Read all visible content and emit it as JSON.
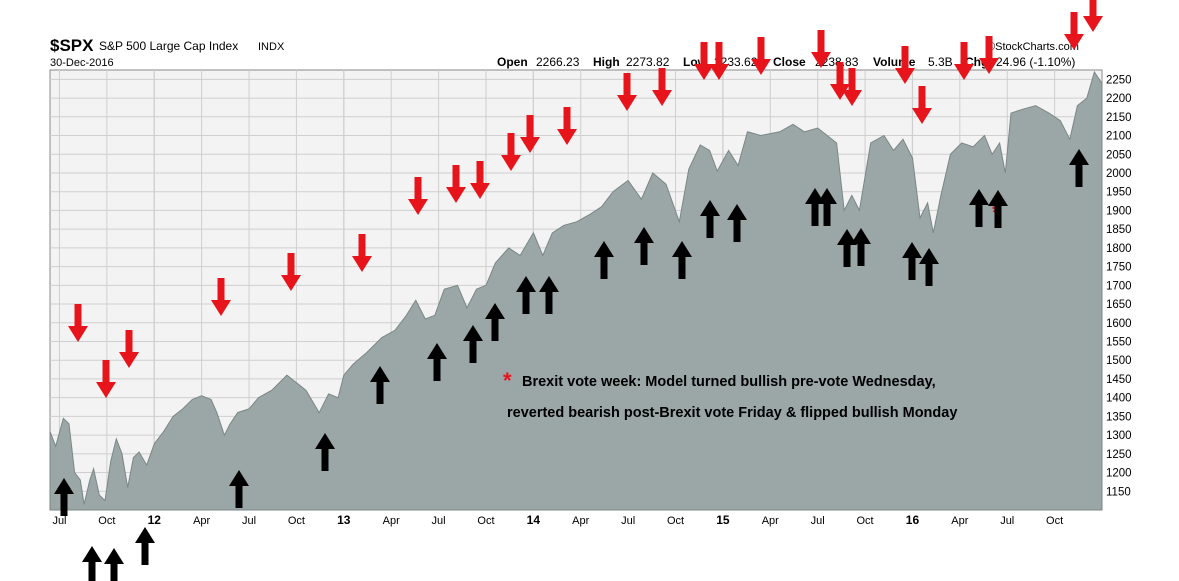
{
  "header": {
    "symbol": "$SPX",
    "name": "S&P 500 Large Cap Index",
    "exchange": "INDX",
    "date": "30-Dec-2016",
    "watermark": "©StockCharts.com",
    "open_label": "Open",
    "open_value": "2266.23",
    "high_label": "High",
    "high_value": "2273.82",
    "low_label": "Low",
    "low_value": "2233.62",
    "close_label": "Close",
    "close_value": "2238.83",
    "volume_label": "Volume",
    "volume_value": "5.3B",
    "chg_label": "Chg",
    "chg_value": "-24.96 (-1.10%)"
  },
  "annotation": {
    "star": "*",
    "line1": "Brexit vote week: Model turned bullish pre-vote Wednesday,",
    "line2": "reverted bearish post-Brexit vote Friday & flipped bullish Monday"
  },
  "colors": {
    "area_fill": "#9aa7a6",
    "area_line": "#7a8786",
    "plot_bg": "#f3f3f3",
    "grid": "#cfcfcf",
    "sell_arrow": "#e8141b",
    "buy_arrow": "#000000"
  },
  "chart_data": {
    "type": "area",
    "ylim": [
      1100,
      2275
    ],
    "yticks": [
      1150,
      1200,
      1250,
      1300,
      1350,
      1400,
      1450,
      1500,
      1550,
      1600,
      1650,
      1700,
      1750,
      1800,
      1850,
      1900,
      1950,
      2000,
      2050,
      2100,
      2150,
      2200,
      2250
    ],
    "xlim": [
      2011.45,
      2017.0
    ],
    "xticks": [
      {
        "label": "Jul",
        "t": 2011.5,
        "year": false
      },
      {
        "label": "Oct",
        "t": 2011.75,
        "year": false
      },
      {
        "label": "12",
        "t": 2012.0,
        "year": true
      },
      {
        "label": "Apr",
        "t": 2012.25,
        "year": false
      },
      {
        "label": "Jul",
        "t": 2012.5,
        "year": false
      },
      {
        "label": "Oct",
        "t": 2012.75,
        "year": false
      },
      {
        "label": "13",
        "t": 2013.0,
        "year": true
      },
      {
        "label": "Apr",
        "t": 2013.25,
        "year": false
      },
      {
        "label": "Jul",
        "t": 2013.5,
        "year": false
      },
      {
        "label": "Oct",
        "t": 2013.75,
        "year": false
      },
      {
        "label": "14",
        "t": 2014.0,
        "year": true
      },
      {
        "label": "Apr",
        "t": 2014.25,
        "year": false
      },
      {
        "label": "Jul",
        "t": 2014.5,
        "year": false
      },
      {
        "label": "Oct",
        "t": 2014.75,
        "year": false
      },
      {
        "label": "15",
        "t": 2015.0,
        "year": true
      },
      {
        "label": "Apr",
        "t": 2015.25,
        "year": false
      },
      {
        "label": "Jul",
        "t": 2015.5,
        "year": false
      },
      {
        "label": "Oct",
        "t": 2015.75,
        "year": false
      },
      {
        "label": "16",
        "t": 2016.0,
        "year": true
      },
      {
        "label": "Apr",
        "t": 2016.25,
        "year": false
      },
      {
        "label": "Jul",
        "t": 2016.5,
        "year": false
      },
      {
        "label": "Oct",
        "t": 2016.75,
        "year": false
      }
    ],
    "series": [
      {
        "points": [
          [
            2011.45,
            1310
          ],
          [
            2011.48,
            1270
          ],
          [
            2011.52,
            1345
          ],
          [
            2011.55,
            1330
          ],
          [
            2011.58,
            1200
          ],
          [
            2011.61,
            1180
          ],
          [
            2011.63,
            1115
          ],
          [
            2011.66,
            1180
          ],
          [
            2011.68,
            1210
          ],
          [
            2011.71,
            1140
          ],
          [
            2011.74,
            1125
          ],
          [
            2011.77,
            1230
          ],
          [
            2011.8,
            1290
          ],
          [
            2011.83,
            1250
          ],
          [
            2011.86,
            1160
          ],
          [
            2011.89,
            1240
          ],
          [
            2011.92,
            1255
          ],
          [
            2011.96,
            1220
          ],
          [
            2012.0,
            1277
          ],
          [
            2012.05,
            1310
          ],
          [
            2012.1,
            1350
          ],
          [
            2012.15,
            1370
          ],
          [
            2012.2,
            1395
          ],
          [
            2012.25,
            1405
          ],
          [
            2012.3,
            1395
          ],
          [
            2012.33,
            1360
          ],
          [
            2012.37,
            1300
          ],
          [
            2012.4,
            1330
          ],
          [
            2012.44,
            1360
          ],
          [
            2012.5,
            1370
          ],
          [
            2012.55,
            1400
          ],
          [
            2012.62,
            1420
          ],
          [
            2012.7,
            1460
          ],
          [
            2012.75,
            1440
          ],
          [
            2012.8,
            1420
          ],
          [
            2012.87,
            1360
          ],
          [
            2012.92,
            1410
          ],
          [
            2012.97,
            1400
          ],
          [
            2013.0,
            1460
          ],
          [
            2013.05,
            1490
          ],
          [
            2013.12,
            1520
          ],
          [
            2013.2,
            1560
          ],
          [
            2013.27,
            1580
          ],
          [
            2013.33,
            1620
          ],
          [
            2013.38,
            1660
          ],
          [
            2013.43,
            1610
          ],
          [
            2013.48,
            1620
          ],
          [
            2013.53,
            1690
          ],
          [
            2013.6,
            1700
          ],
          [
            2013.65,
            1640
          ],
          [
            2013.7,
            1690
          ],
          [
            2013.75,
            1700
          ],
          [
            2013.8,
            1760
          ],
          [
            2013.87,
            1800
          ],
          [
            2013.93,
            1780
          ],
          [
            2014.0,
            1840
          ],
          [
            2014.05,
            1780
          ],
          [
            2014.1,
            1840
          ],
          [
            2014.16,
            1860
          ],
          [
            2014.23,
            1870
          ],
          [
            2014.3,
            1890
          ],
          [
            2014.36,
            1910
          ],
          [
            2014.42,
            1950
          ],
          [
            2014.5,
            1980
          ],
          [
            2014.57,
            1930
          ],
          [
            2014.63,
            2000
          ],
          [
            2014.7,
            1970
          ],
          [
            2014.77,
            1870
          ],
          [
            2014.82,
            2010
          ],
          [
            2014.88,
            2075
          ],
          [
            2014.93,
            2060
          ],
          [
            2014.97,
            2005
          ],
          [
            2015.03,
            2060
          ],
          [
            2015.08,
            2020
          ],
          [
            2015.13,
            2110
          ],
          [
            2015.2,
            2100
          ],
          [
            2015.3,
            2110
          ],
          [
            2015.37,
            2130
          ],
          [
            2015.43,
            2110
          ],
          [
            2015.5,
            2120
          ],
          [
            2015.55,
            2100
          ],
          [
            2015.6,
            2080
          ],
          [
            2015.64,
            1900
          ],
          [
            2015.68,
            1940
          ],
          [
            2015.72,
            1900
          ],
          [
            2015.78,
            2080
          ],
          [
            2015.85,
            2100
          ],
          [
            2015.9,
            2060
          ],
          [
            2015.95,
            2090
          ],
          [
            2016.0,
            2040
          ],
          [
            2016.04,
            1880
          ],
          [
            2016.08,
            1920
          ],
          [
            2016.11,
            1840
          ],
          [
            2016.15,
            1940
          ],
          [
            2016.2,
            2050
          ],
          [
            2016.26,
            2080
          ],
          [
            2016.32,
            2070
          ],
          [
            2016.38,
            2100
          ],
          [
            2016.42,
            2050
          ],
          [
            2016.46,
            2080
          ],
          [
            2016.49,
            2000
          ],
          [
            2016.52,
            2160
          ],
          [
            2016.58,
            2170
          ],
          [
            2016.65,
            2180
          ],
          [
            2016.72,
            2160
          ],
          [
            2016.78,
            2140
          ],
          [
            2016.83,
            2090
          ],
          [
            2016.87,
            2180
          ],
          [
            2016.92,
            2200
          ],
          [
            2016.96,
            2270
          ],
          [
            2017.0,
            2239
          ]
        ]
      }
    ]
  },
  "signals": {
    "sell_arrows": [
      [
        78,
        342
      ],
      [
        106,
        398
      ],
      [
        129,
        368
      ],
      [
        221,
        316
      ],
      [
        291,
        291
      ],
      [
        362,
        272
      ],
      [
        418,
        215
      ],
      [
        456,
        203
      ],
      [
        480,
        199
      ],
      [
        511,
        171
      ],
      [
        530,
        153
      ],
      [
        567,
        145
      ],
      [
        627,
        111
      ],
      [
        662,
        106
      ],
      [
        704,
        80
      ],
      [
        719,
        80
      ],
      [
        761,
        75
      ],
      [
        821,
        68
      ],
      [
        840,
        100
      ],
      [
        852,
        106
      ],
      [
        905,
        84
      ],
      [
        922,
        124
      ],
      [
        964,
        80
      ],
      [
        989,
        74
      ],
      [
        1074,
        50
      ],
      [
        1093,
        32
      ]
    ],
    "buy_arrows": [
      [
        64,
        478
      ],
      [
        92,
        546
      ],
      [
        114,
        548
      ],
      [
        145,
        527
      ],
      [
        239,
        470
      ],
      [
        325,
        433
      ],
      [
        380,
        366
      ],
      [
        437,
        343
      ],
      [
        473,
        325
      ],
      [
        495,
        303
      ],
      [
        526,
        276
      ],
      [
        549,
        276
      ],
      [
        604,
        241
      ],
      [
        644,
        227
      ],
      [
        682,
        241
      ],
      [
        710,
        200
      ],
      [
        737,
        204
      ],
      [
        815,
        188
      ],
      [
        827,
        188
      ],
      [
        847,
        229
      ],
      [
        861,
        228
      ],
      [
        912,
        242
      ],
      [
        929,
        248
      ],
      [
        979,
        189
      ],
      [
        998,
        190
      ],
      [
        1079,
        149
      ]
    ]
  }
}
